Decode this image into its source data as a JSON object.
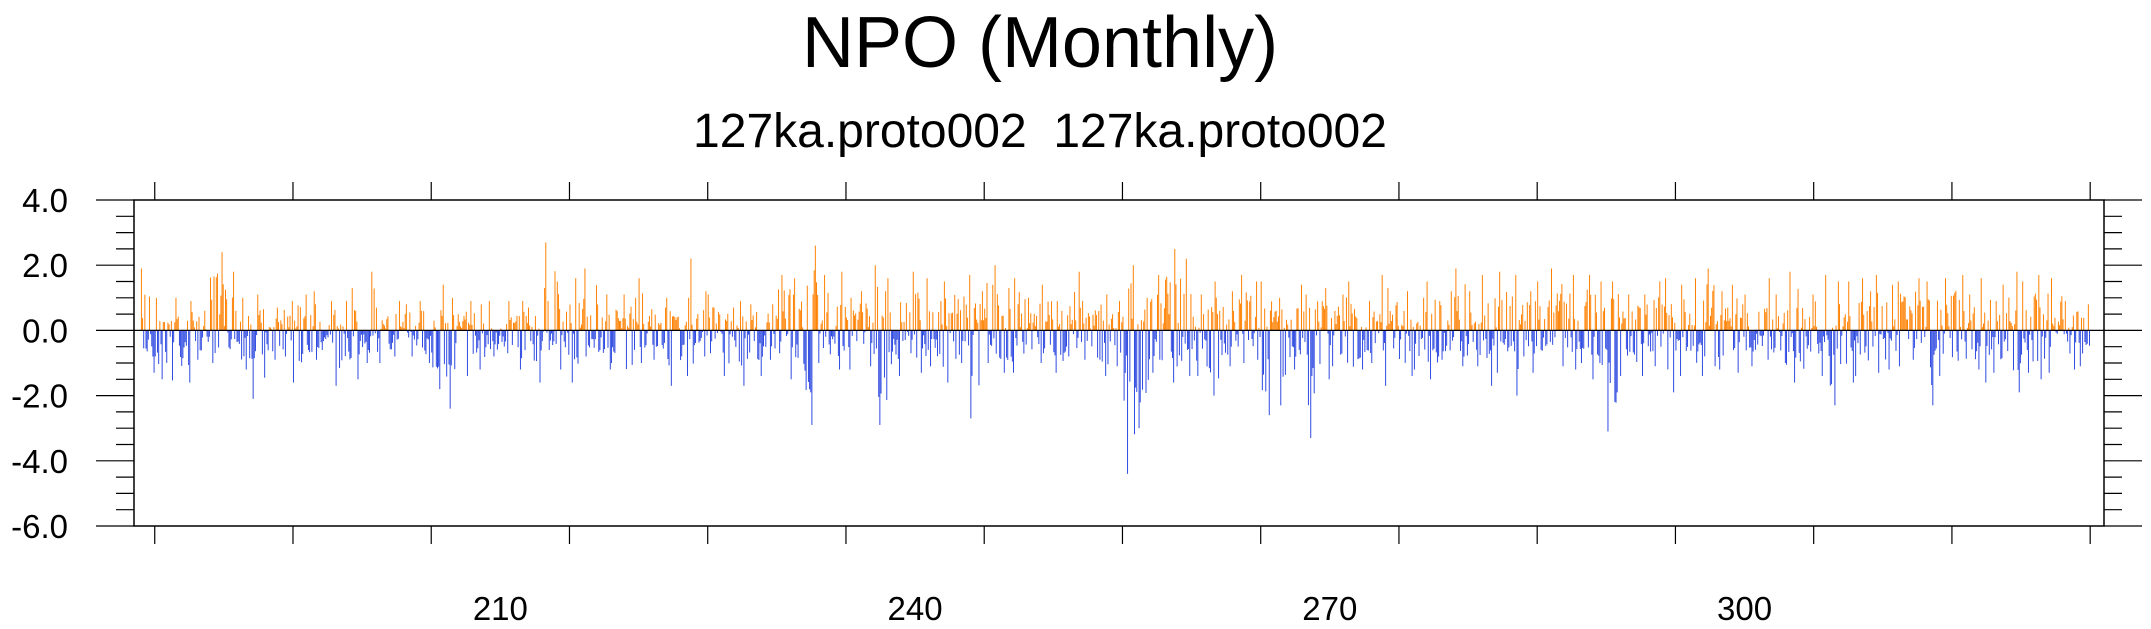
{
  "chart_data": {
    "type": "bar",
    "title": "NPO (Monthly)",
    "subtitle": "127ka.proto002  127ka.proto002",
    "xlabel": "",
    "ylabel": "",
    "xlim": [
      183.5,
      326
    ],
    "ylim": [
      -6.0,
      4.0
    ],
    "x_ticks": [
      210,
      240,
      270,
      300
    ],
    "x_tick_labels": [
      "210",
      "240",
      "270",
      "300"
    ],
    "y_ticks": [
      -6.0,
      -4.0,
      -2.0,
      0.0,
      2.0,
      4.0
    ],
    "y_tick_labels": [
      "-6.0",
      "-4.0",
      "-2.0",
      "0.0",
      "2.0",
      "4.0"
    ],
    "x_start": 184,
    "months_per_unit": 12,
    "grid": false,
    "colors": {
      "positive": "#ff8000",
      "negative": "#2b47e0",
      "axis": "#000000"
    },
    "annual_positive_max": [
      1.9,
      1.0,
      1.0,
      0.9,
      0.6,
      2.4,
      1.8,
      1.0,
      1.1,
      0.7,
      0.9,
      1.1,
      1.2,
      0.9,
      0.9,
      1.3,
      1.8,
      0.7,
      0.9,
      0.8,
      0.9,
      1.4,
      1.0,
      0.9,
      0.8,
      0.9,
      0.9,
      0.9,
      0.7,
      2.7,
      1.5,
      1.6,
      1.9,
      1.1,
      1.1,
      1.0,
      1.6,
      0.7,
      1.0,
      2.2,
      1.2,
      1.1,
      0.7,
      0.9,
      0.8,
      0.8,
      1.7,
      1.6,
      2.6,
      1.7,
      1.8,
      1.0,
      1.2,
      2.0,
      1.6,
      1.8,
      1.6,
      0.9,
      1.5,
      1.7,
      1.2,
      2.0,
      1.3,
      1.6,
      1.0,
      1.4,
      0.9,
      1.8,
      0.9,
      1.1,
      0.9,
      2.0,
      1.0,
      1.7,
      2.5,
      2.2,
      1.1,
      1.5,
      1.2,
      1.7,
      1.5,
      1.5,
      1.0,
      1.4,
      1.1,
      1.3,
      1.1,
      1.5,
      0.9,
      1.7,
      1.3,
      1.2,
      1.0,
      1.5,
      1.2,
      1.9,
      1.2,
      1.7,
      1.8,
      1.7,
      1.2,
      1.5,
      1.9,
      1.7,
      1.7,
      1.5,
      1.5,
      1.1,
      1.1,
      1.5,
      1.6,
      1.4,
      1.6,
      1.9,
      1.2,
      1.4,
      1.1,
      1.6,
      1.1,
      1.8,
      1.1,
      1.7,
      1.5,
      1.5,
      1.6,
      1.7,
      1.4,
      1.5,
      1.6,
      1.5,
      1.6,
      1.7,
      1.1,
      1.6,
      1.4,
      1.8,
      1.5,
      1.7,
      1.6,
      0.9,
      0.8
    ],
    "annual_negative_min": [
      -1.3,
      -1.5,
      -2.2,
      -1.6,
      -0.9,
      -1.0,
      -0.8,
      -1.2,
      -2.1,
      -0.9,
      -0.8,
      -1.6,
      -0.9,
      -0.6,
      -1.7,
      -1.5,
      -1.0,
      -1.0,
      -0.8,
      -0.8,
      -1.0,
      -1.8,
      -2.4,
      -1.4,
      -1.2,
      -0.8,
      -0.7,
      -1.2,
      -1.6,
      -0.6,
      -1.2,
      -1.6,
      -0.8,
      -1.2,
      -1.0,
      -2.4,
      -1.0,
      -0.9,
      -1.7,
      -1.4,
      -0.8,
      -0.7,
      -1.4,
      -1.7,
      -1.4,
      -0.9,
      -0.7,
      -1.5,
      -2.9,
      -1.0,
      -1.2,
      -1.2,
      -1.1,
      -2.9,
      -1.4,
      -0.7,
      -1.3,
      -1.1,
      -1.6,
      -1.0,
      -2.7,
      -1.0,
      -1.3,
      -1.3,
      -1.2,
      -1.0,
      -1.3,
      -0.8,
      -0.9,
      -1.4,
      -1.1,
      -4.4,
      -3.0,
      -1.3,
      -1.6,
      -1.4,
      -1.4,
      -2.0,
      -1.1,
      -1.0,
      -0.9,
      -2.6,
      -2.3,
      -1.2,
      -3.3,
      -1.5,
      -1.1,
      -1.8,
      -1.2,
      -1.0,
      -1.7,
      -1.4,
      -1.2,
      -1.5,
      -0.9,
      -1.1,
      -1.1,
      -1.7,
      -1.3,
      -2.0,
      -1.3,
      -1.4,
      -1.1,
      -1.2,
      -1.0,
      -1.5,
      -3.1,
      -1.4,
      -1.4,
      -1.1,
      -1.9,
      -1.4,
      -1.4,
      -1.1,
      -1.2,
      -1.3,
      -1.1,
      -0.9,
      -1.0,
      -1.6,
      -1.6,
      -1.4,
      -2.3,
      -1.6,
      -1.4,
      -1.3,
      -1.2,
      -1.1,
      -0.9,
      -2.3,
      -1.4,
      -1.3,
      -1.2,
      -1.6,
      -1.3,
      -1.9,
      -1.3,
      -1.5,
      -1.3,
      -1.2,
      -1.1,
      -0.9
    ]
  }
}
